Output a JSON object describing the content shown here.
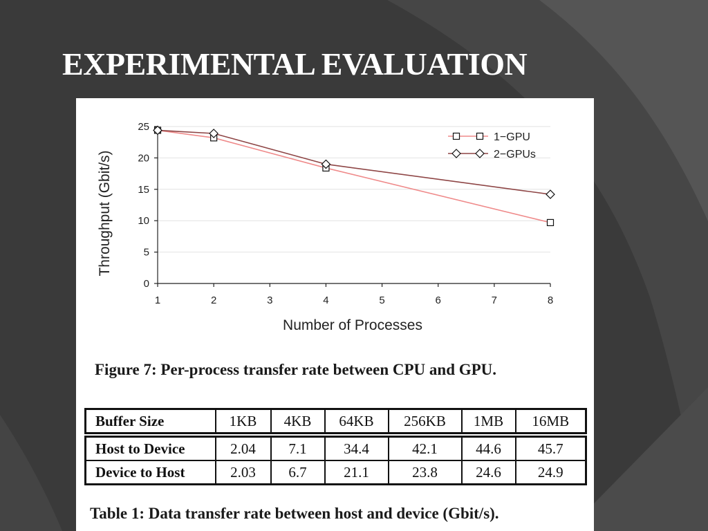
{
  "slide": {
    "title": "EXPERIMENTAL EVALUATION"
  },
  "figure": {
    "caption": "Figure 7: Per-process transfer rate between CPU and GPU."
  },
  "chart_data": {
    "type": "line",
    "title": "",
    "xlabel": "Number of Processes",
    "ylabel": "Throughput (Gbit/s)",
    "xlim": [
      1,
      8
    ],
    "ylim": [
      0,
      25
    ],
    "x_ticks": [
      1,
      2,
      3,
      4,
      5,
      6,
      7,
      8
    ],
    "y_ticks": [
      0,
      5,
      10,
      15,
      20,
      25
    ],
    "grid": "horizontal",
    "legend_position": "top-right",
    "series": [
      {
        "name": "1−GPU",
        "marker": "square",
        "color": "#ef8a8a",
        "points": [
          [
            1,
            24.4
          ],
          [
            2,
            23.2
          ],
          [
            4,
            18.4
          ],
          [
            8,
            9.7
          ]
        ]
      },
      {
        "name": "2−GPUs",
        "marker": "diamond",
        "color": "#8e4545",
        "points": [
          [
            1,
            24.4
          ],
          [
            2,
            23.9
          ],
          [
            4,
            19.0
          ],
          [
            8,
            14.2
          ]
        ]
      }
    ]
  },
  "table": {
    "caption": "Table 1: Data transfer rate between host and device (Gbit/s).",
    "header": [
      "Buffer Size",
      "1KB",
      "4KB",
      "64KB",
      "256KB",
      "1MB",
      "16MB"
    ],
    "rows": [
      [
        "Host to Device",
        "2.04",
        "7.1",
        "34.4",
        "42.1",
        "44.6",
        "45.7"
      ],
      [
        "Device to Host",
        "2.03",
        "6.7",
        "21.1",
        "23.8",
        "24.6",
        "24.9"
      ]
    ]
  }
}
